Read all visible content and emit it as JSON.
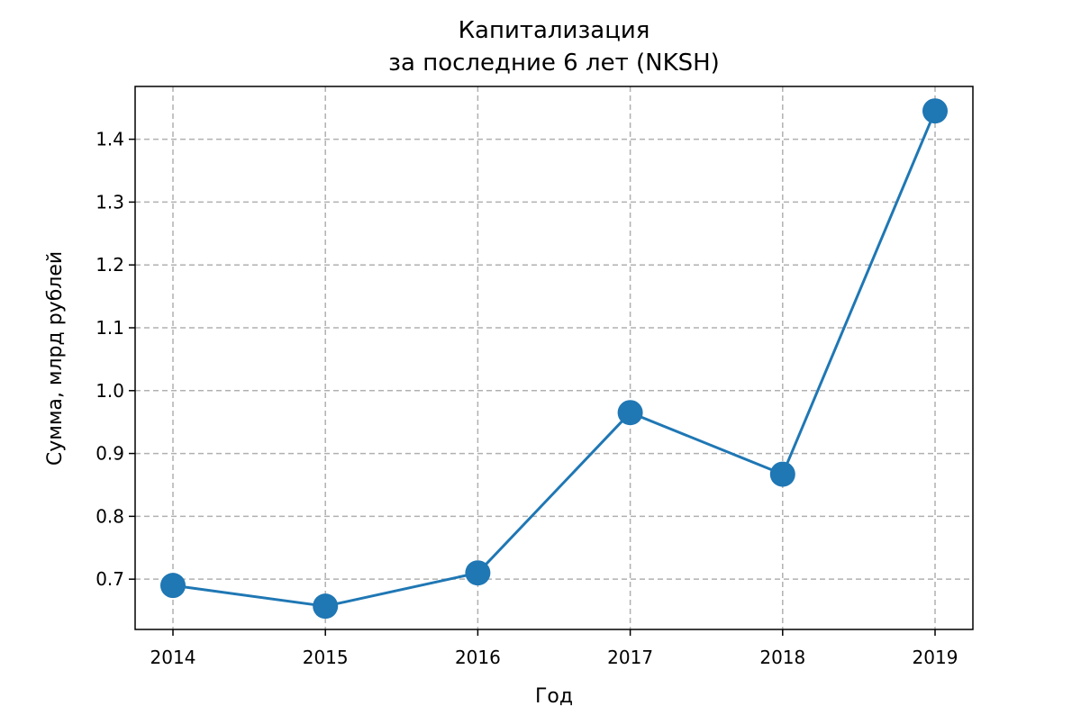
{
  "chart_data": {
    "type": "line",
    "title_line1": "Капитализация",
    "title_line2": "за последние 6 лет (NKSH)",
    "xlabel": "Год",
    "ylabel": "Сумма, млрд рублей",
    "x": [
      "2014",
      "2015",
      "2016",
      "2017",
      "2018",
      "2019"
    ],
    "series": [
      {
        "values": [
          0.69,
          0.657,
          0.71,
          0.965,
          0.867,
          1.445
        ]
      }
    ],
    "ylim": [
      0.62,
      1.484
    ],
    "yticks": [
      "0.7",
      "0.8",
      "0.9",
      "1.0",
      "1.1",
      "1.2",
      "1.3",
      "1.4"
    ],
    "ytick_values": [
      0.7,
      0.8,
      0.9,
      1.0,
      1.1,
      1.2,
      1.3,
      1.4
    ],
    "grid": true,
    "legend": "none",
    "colors": {
      "line": "#1f77b4",
      "grid": "#b0b0b0",
      "axes": "#000000"
    }
  }
}
